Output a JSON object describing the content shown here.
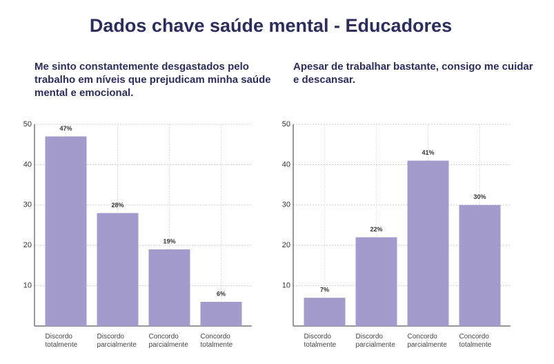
{
  "title": "Dados chave saúde mental - Educadores",
  "chart_data": [
    {
      "type": "bar",
      "title": "Me sinto constantemente desgastados pelo trabalho em níveis que prejudicam minha saúde mental e emocional.",
      "categories": [
        "Discordo totalmente",
        "Discordo parcialmente",
        "Concordo parcialmente",
        "Concordo totalmente"
      ],
      "values": [
        47,
        28,
        19,
        6
      ],
      "value_labels": [
        "47%",
        "28%",
        "19%",
        "6%"
      ],
      "color": "#a39bcc",
      "ylim": [
        0,
        50
      ],
      "yticks": [
        10,
        20,
        30,
        40,
        50
      ],
      "grid": true
    },
    {
      "type": "bar",
      "title": "Apesar de trabalhar bastante, consigo me cuidar e descansar.",
      "categories": [
        "Discordo totalmente",
        "Discordo parcialmente",
        "Concordo parcialmente",
        "Concordo totalmente"
      ],
      "values": [
        7,
        22,
        41,
        30
      ],
      "value_labels": [
        "7%",
        "22%",
        "41%",
        "30%"
      ],
      "color": "#a39bcc",
      "ylim": [
        0,
        50
      ],
      "yticks": [
        10,
        20,
        30,
        40,
        50
      ],
      "grid": true
    }
  ]
}
